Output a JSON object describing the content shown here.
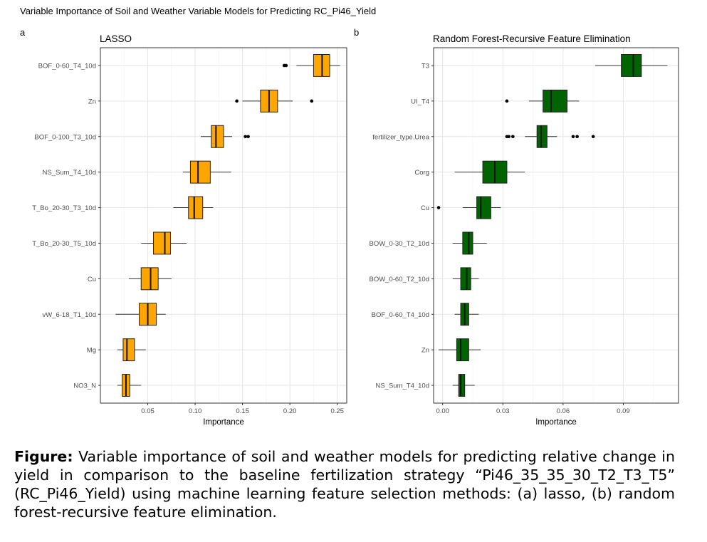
{
  "figure_title": "Variable Importance of Soil and Weather Variable Models for Predicting RC_Pi46_Yield",
  "caption": {
    "label": "Figure:",
    "text": " Variable importance of soil and weather models for predicting relative change in yield in comparison to the baseline fertilization strategy “Pi46_35_35_30_T2_T3_T5” (RC_Pi46_Yield) using machine learning feature selection methods: (a) lasso, (b) random forest-recursive feature elimination."
  },
  "chart_data": [
    {
      "type": "boxplot",
      "panel_letter": "a",
      "title": "LASSO",
      "xlabel": "Importance",
      "ylabel": "",
      "xlim": [
        0.0,
        0.26
      ],
      "xticks": [
        0.05,
        0.1,
        0.15,
        0.2,
        0.25
      ],
      "xtick_labels": [
        "0.05",
        "0.10",
        "0.15",
        "0.20",
        "0.25"
      ],
      "grid": true,
      "fill_color": "#FFA500",
      "variables": [
        {
          "name": "BOF_0-60_T4_10d",
          "whisker_low": 0.207,
          "q1": 0.225,
          "median": 0.234,
          "q3": 0.242,
          "whisker_high": 0.253,
          "outliers": [
            0.194,
            0.196
          ]
        },
        {
          "name": "Zn",
          "whisker_low": 0.15,
          "q1": 0.169,
          "median": 0.178,
          "q3": 0.187,
          "whisker_high": 0.203,
          "outliers": [
            0.144,
            0.223
          ]
        },
        {
          "name": "BOF_0-100_T3_10d",
          "whisker_low": 0.106,
          "q1": 0.117,
          "median": 0.122,
          "q3": 0.13,
          "whisker_high": 0.139,
          "outliers": [
            0.153,
            0.156
          ]
        },
        {
          "name": "NS_Sum_T4_10d",
          "whisker_low": 0.087,
          "q1": 0.095,
          "median": 0.103,
          "q3": 0.116,
          "whisker_high": 0.138,
          "outliers": []
        },
        {
          "name": "T_Bo_20-30_T3_10d",
          "whisker_low": 0.077,
          "q1": 0.093,
          "median": 0.099,
          "q3": 0.108,
          "whisker_high": 0.119,
          "outliers": []
        },
        {
          "name": "T_Bo_20-30_T5_10d",
          "whisker_low": 0.043,
          "q1": 0.056,
          "median": 0.068,
          "q3": 0.074,
          "whisker_high": 0.091,
          "outliers": []
        },
        {
          "name": "Cu",
          "whisker_low": 0.03,
          "q1": 0.043,
          "median": 0.053,
          "q3": 0.061,
          "whisker_high": 0.075,
          "outliers": []
        },
        {
          "name": "vW_6-18_T1_10d",
          "whisker_low": 0.016,
          "q1": 0.041,
          "median": 0.05,
          "q3": 0.059,
          "whisker_high": 0.069,
          "outliers": []
        },
        {
          "name": "Mg",
          "whisker_low": 0.018,
          "q1": 0.024,
          "median": 0.028,
          "q3": 0.036,
          "whisker_high": 0.048,
          "outliers": []
        },
        {
          "name": "NO3_N",
          "whisker_low": 0.018,
          "q1": 0.023,
          "median": 0.027,
          "q3": 0.031,
          "whisker_high": 0.043,
          "outliers": []
        }
      ]
    },
    {
      "type": "boxplot",
      "panel_letter": "b",
      "title": "Random Forest-Recursive Feature Elimination",
      "xlabel": "Importance",
      "ylabel": "",
      "xlim": [
        -0.0045,
        0.1175
      ],
      "xticks": [
        0.0,
        0.03,
        0.06,
        0.09
      ],
      "xtick_labels": [
        "0.00",
        "0.03",
        "0.06",
        "0.09"
      ],
      "grid": true,
      "fill_color": "#006400",
      "variables": [
        {
          "name": "T3",
          "whisker_low": 0.076,
          "q1": 0.089,
          "median": 0.095,
          "q3": 0.099,
          "whisker_high": 0.112,
          "outliers": []
        },
        {
          "name": "UI_T4",
          "whisker_low": 0.043,
          "q1": 0.05,
          "median": 0.054,
          "q3": 0.062,
          "whisker_high": 0.068,
          "outliers": [
            0.032
          ]
        },
        {
          "name": "fertilizer_type.Urea",
          "whisker_low": 0.041,
          "q1": 0.047,
          "median": 0.049,
          "q3": 0.052,
          "whisker_high": 0.057,
          "outliers": [
            0.032,
            0.033,
            0.035,
            0.065,
            0.067,
            0.075
          ]
        },
        {
          "name": "Corg",
          "whisker_low": 0.006,
          "q1": 0.02,
          "median": 0.026,
          "q3": 0.032,
          "whisker_high": 0.041,
          "outliers": []
        },
        {
          "name": "Cu",
          "whisker_low": 0.01,
          "q1": 0.017,
          "median": 0.019,
          "q3": 0.024,
          "whisker_high": 0.029,
          "outliers": [
            -0.002
          ]
        },
        {
          "name": "BOW_0-30_T2_10d",
          "whisker_low": 0.005,
          "q1": 0.01,
          "median": 0.013,
          "q3": 0.015,
          "whisker_high": 0.022,
          "outliers": []
        },
        {
          "name": "BOW_0-60_T2_10d",
          "whisker_low": 0.005,
          "q1": 0.009,
          "median": 0.012,
          "q3": 0.014,
          "whisker_high": 0.018,
          "outliers": []
        },
        {
          "name": "BOF_0-60_T4_10d",
          "whisker_low": 0.006,
          "q1": 0.009,
          "median": 0.011,
          "q3": 0.013,
          "whisker_high": 0.018,
          "outliers": []
        },
        {
          "name": "Zn",
          "whisker_low": -0.002,
          "q1": 0.007,
          "median": 0.009,
          "q3": 0.013,
          "whisker_high": 0.019,
          "outliers": []
        },
        {
          "name": "NS_Sum_T4_10d",
          "whisker_low": 0.005,
          "q1": 0.008,
          "median": 0.009,
          "q3": 0.011,
          "whisker_high": 0.016,
          "outliers": []
        }
      ]
    }
  ]
}
